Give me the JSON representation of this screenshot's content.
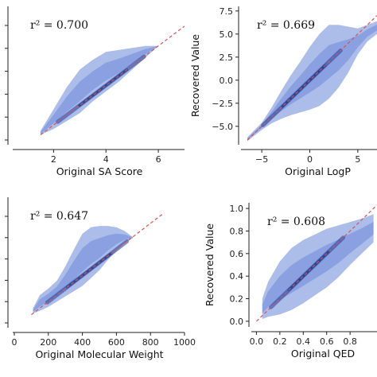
{
  "chart_data": [
    {
      "type": "scatter",
      "subtype": "density",
      "annotation": "r² = 0.700",
      "xlabel": "Original SA Score",
      "ylabel": "",
      "xlim": [
        0.5,
        7
      ],
      "ylim": [
        1,
        8
      ],
      "xticks": [
        "2",
        "4",
        "6"
      ],
      "yticks": [],
      "reference_line": {
        "style": "dashed",
        "color": "#d9534f",
        "from": [
          1.5,
          1.5
        ],
        "to": [
          7,
          7
        ]
      },
      "density_band": {
        "x": [
          1.5,
          2,
          2.5,
          3,
          3.5,
          4,
          4.5,
          5,
          5.5,
          6
        ],
        "upper": [
          1.7,
          2.8,
          3.9,
          4.8,
          5.3,
          5.7,
          5.8,
          5.9,
          6.0,
          6.0
        ],
        "lower": [
          1.5,
          1.8,
          2.2,
          2.6,
          3.2,
          3.7,
          4.2,
          4.8,
          5.4,
          6.0
        ]
      },
      "fill_color": "#9fb1e6",
      "core_color": "#1c3f9e",
      "grid": false
    },
    {
      "type": "scatter",
      "subtype": "density",
      "annotation": "r² = 0.669",
      "xlabel": "Original LogP",
      "ylabel": "Recovered Value",
      "xlim": [
        -7,
        7
      ],
      "ylim": [
        -7,
        8
      ],
      "xticks": [
        "−5",
        "0",
        "5"
      ],
      "yticks": [
        "−5.0",
        "−2.5",
        "0.0",
        "2.5",
        "5.0",
        "7.5"
      ],
      "reference_line": {
        "style": "dashed",
        "color": "#d9534f",
        "from": [
          -6.5,
          -6.5
        ],
        "to": [
          7,
          7
        ]
      },
      "density_band": {
        "x": [
          -6.5,
          -5,
          -4,
          -3,
          -2,
          -1,
          0,
          1,
          2,
          3,
          4,
          5,
          6,
          7
        ],
        "upper": [
          -6.2,
          -4.6,
          -3.0,
          -1.2,
          0.5,
          2.0,
          3.6,
          5.0,
          6.0,
          6.0,
          5.8,
          5.6,
          6.0,
          6.4
        ],
        "lower": [
          -6.6,
          -5.4,
          -4.7,
          -4.2,
          -3.8,
          -3.5,
          -3.2,
          -2.8,
          -2.0,
          -0.8,
          0.8,
          2.8,
          4.2,
          5.0
        ]
      },
      "fill_color": "#9fb1e6",
      "core_color": "#1c3f9e",
      "grid": false
    },
    {
      "type": "scatter",
      "subtype": "density",
      "annotation": "r² = 0.647",
      "xlabel": "Original Molecular Weight",
      "ylabel": "",
      "xlim": [
        0,
        1000
      ],
      "ylim": [
        0,
        1000
      ],
      "xticks": [
        "0",
        "200",
        "400",
        "600",
        "800",
        "1000"
      ],
      "yticks": [],
      "reference_line": {
        "style": "dashed",
        "color": "#d9534f",
        "from": [
          100,
          100
        ],
        "to": [
          880,
          880
        ]
      },
      "density_band": {
        "x": [
          110,
          150,
          200,
          250,
          300,
          350,
          400,
          450,
          500,
          550,
          600,
          650,
          700
        ],
        "upper": [
          150,
          250,
          300,
          360,
          470,
          600,
          720,
          770,
          780,
          780,
          770,
          740,
          690
        ],
        "lower": [
          110,
          130,
          160,
          200,
          240,
          280,
          320,
          380,
          440,
          520,
          590,
          650,
          690
        ]
      },
      "fill_color": "#9fb1e6",
      "core_color": "#1c3f9e",
      "grid": false
    },
    {
      "type": "scatter",
      "subtype": "density",
      "annotation": "r² = 0.608",
      "xlabel": "Original QED",
      "ylabel": "Recovered Value",
      "xlim": [
        -0.03,
        1.03
      ],
      "ylim": [
        -0.05,
        1.05
      ],
      "xticks": [
        "0.0",
        "0.2",
        "0.4",
        "0.6",
        "0.8"
      ],
      "yticks": [
        "0.0",
        "0.2",
        "0.4",
        "0.6",
        "0.8",
        "1.0"
      ],
      "reference_line": {
        "style": "dashed",
        "color": "#d9534f",
        "from": [
          0,
          0
        ],
        "to": [
          1.03,
          1.03
        ]
      },
      "density_band": {
        "x": [
          0.05,
          0.1,
          0.2,
          0.3,
          0.4,
          0.5,
          0.6,
          0.7,
          0.8,
          0.9,
          1.0
        ],
        "upper": [
          0.2,
          0.35,
          0.53,
          0.65,
          0.72,
          0.77,
          0.82,
          0.85,
          0.88,
          0.91,
          0.95
        ],
        "lower": [
          0.02,
          0.04,
          0.06,
          0.1,
          0.16,
          0.23,
          0.3,
          0.39,
          0.5,
          0.6,
          0.7
        ]
      },
      "fill_color": "#9fb1e6",
      "core_color": "#1c3f9e",
      "grid": false
    }
  ]
}
